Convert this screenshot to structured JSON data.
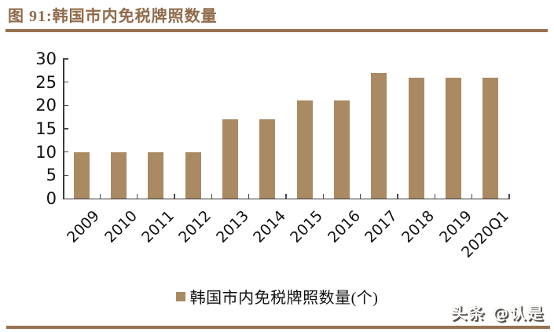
{
  "figure": {
    "title": "图 91:韩国市内免税牌照数量"
  },
  "chart_data": {
    "type": "bar",
    "title": "韩国市内免税牌照数量",
    "categories": [
      "2009",
      "2010",
      "2011",
      "2012",
      "2013",
      "2014",
      "2015",
      "2016",
      "2017",
      "2018",
      "2019",
      "2020Q1"
    ],
    "values": [
      10,
      10,
      10,
      10,
      17,
      17,
      21,
      21,
      27,
      26,
      26,
      26
    ],
    "xlabel": "",
    "ylabel": "",
    "ylim": [
      0,
      30
    ],
    "ytick_step": 5,
    "grid": false,
    "legend": [
      "韩国市内免税牌照数量(个)"
    ],
    "legend_position": "bottom",
    "bar_color": "#A98A62"
  },
  "legend": {
    "label": "韩国市内免税牌照数量(个)",
    "swatch_color": "#A98A62"
  },
  "watermark": {
    "text": "头条 @认是"
  },
  "colors": {
    "accent_brown": "#96714F",
    "title_brown": "#8F6A4A",
    "bar": "#A98A62",
    "axis": "#3A3A3A",
    "text": "#111111"
  }
}
